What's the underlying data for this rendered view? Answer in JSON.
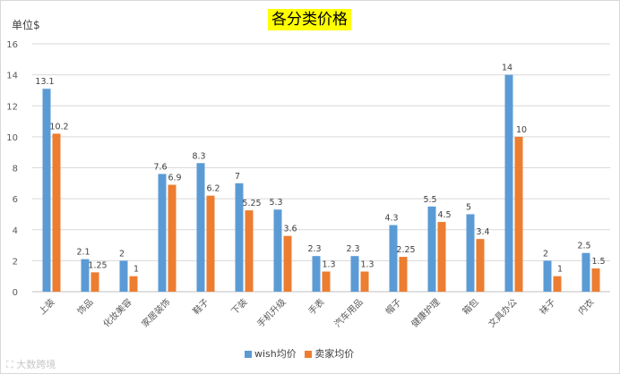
{
  "chart_data": {
    "type": "bar",
    "title": "各分类价格",
    "ylabel": "单位$",
    "ylim": [
      0,
      16
    ],
    "yticks": [
      0,
      2,
      4,
      6,
      8,
      10,
      12,
      14,
      16
    ],
    "grid": true,
    "legend_position": "bottom",
    "categories": [
      "上装",
      "饰品",
      "化妆美容",
      "家居装饰",
      "鞋子",
      "下装",
      "手机升级",
      "手表",
      "汽车用品",
      "帽子",
      "健康护理",
      "箱包",
      "文具办公",
      "袜子",
      "内衣"
    ],
    "series": [
      {
        "name": "wish均价",
        "color": "#5b9bd5",
        "values": [
          13.1,
          2.1,
          2,
          7.6,
          8.3,
          7,
          5.3,
          2.3,
          2.3,
          4.3,
          5.5,
          5,
          14,
          2,
          2.5
        ],
        "labels": [
          "13.1",
          "2.1",
          "2",
          "7.6",
          "8.3",
          "7",
          "5.3",
          "2.3",
          "2.3",
          "4.3",
          "5.5",
          "5",
          "14",
          "2",
          "2.5"
        ]
      },
      {
        "name": "卖家均价",
        "color": "#ed7d31",
        "values": [
          10.2,
          1.25,
          1,
          6.9,
          6.2,
          5.25,
          3.6,
          1.3,
          1.3,
          2.25,
          4.5,
          3.4,
          10,
          1,
          1.5
        ],
        "labels": [
          "10.2",
          "1.25",
          "1",
          "6.9",
          "6.2",
          "5.25",
          "3.6",
          "1.3",
          "1.3",
          "2.25",
          "4.5",
          "3.4",
          "10",
          "1",
          "1.5"
        ]
      }
    ]
  },
  "watermark": "大数跨境"
}
